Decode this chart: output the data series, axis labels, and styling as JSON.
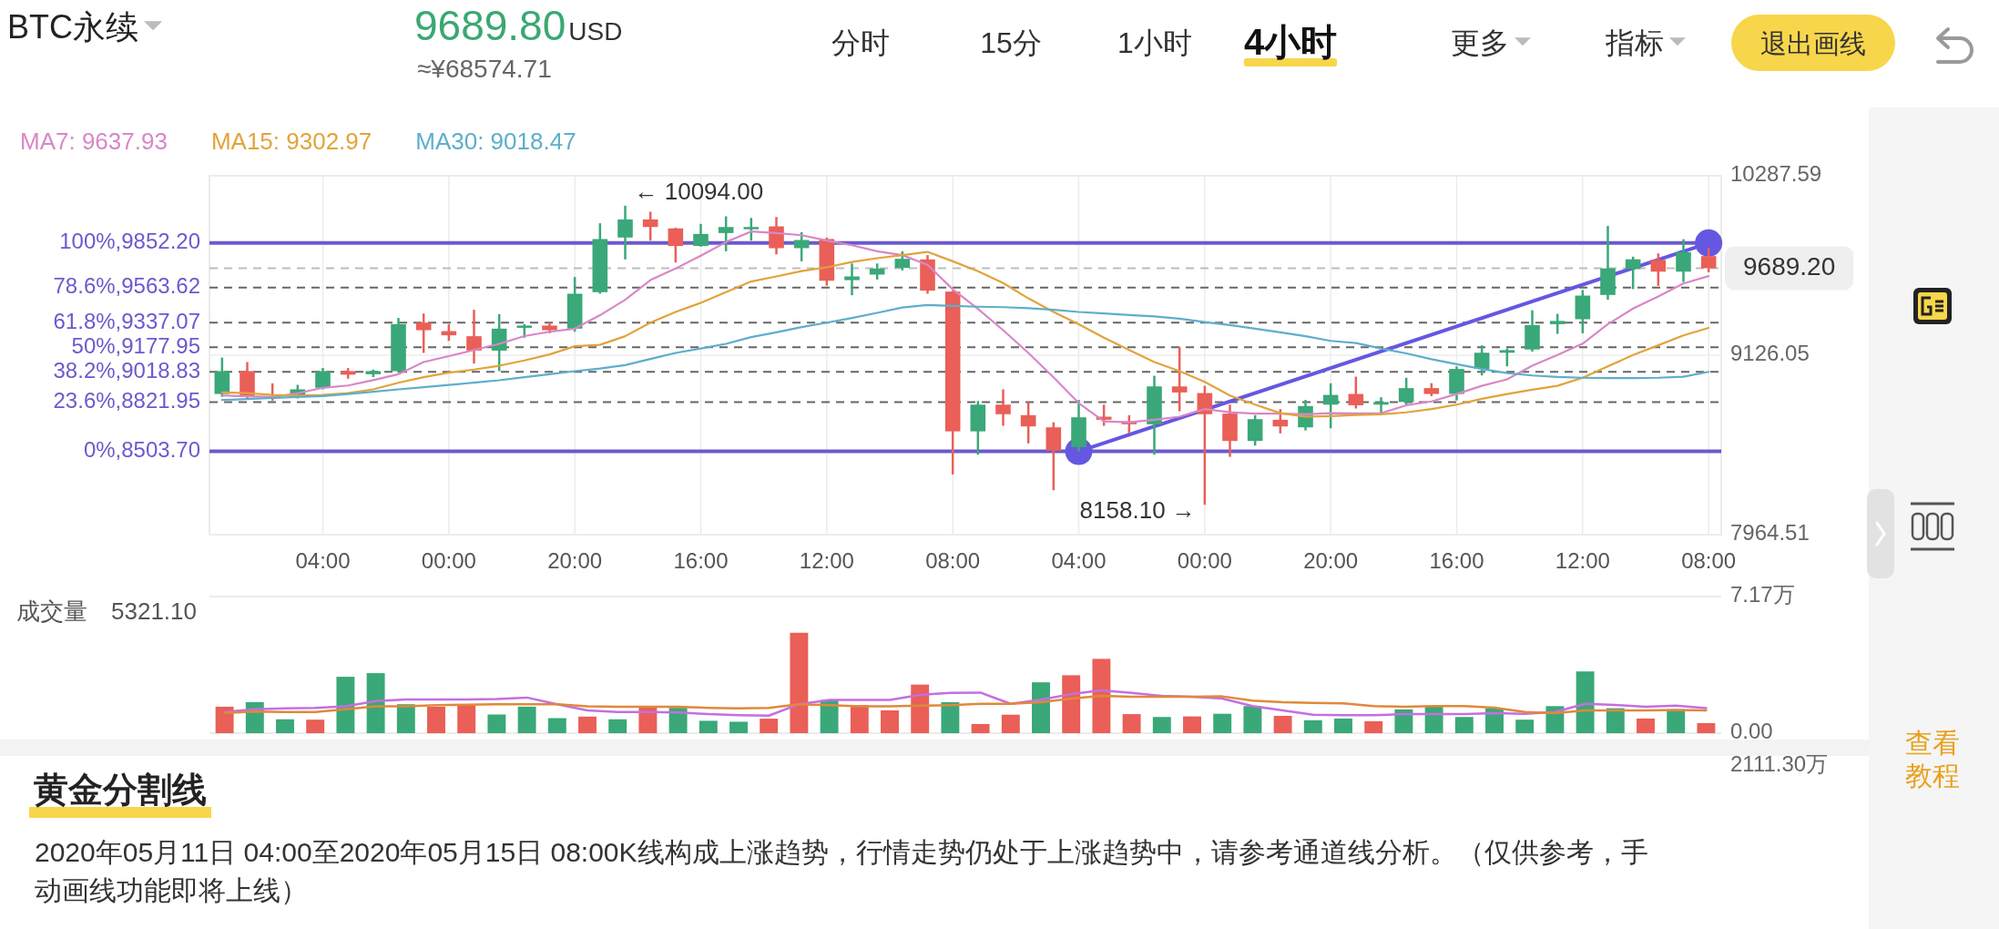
{
  "chart_data": [
    {
      "type": "other",
      "annotations": [
        "BTC永续",
        "9689.80",
        "USD",
        "≈¥68574.71",
        "分时",
        "15分",
        "1小时",
        "4小时",
        "更多",
        "指标",
        "退出画线"
      ]
    },
    {
      "type": "candlestick",
      "x": [
        "2020-05-05T12:00",
        "2020-05-05T16:00",
        "2020-05-05T20:00",
        "2020-05-06T00:00",
        "2020-05-06T04:00",
        "2020-05-06T08:00",
        "2020-05-06T12:00",
        "2020-05-06T16:00",
        "2020-05-06T20:00",
        "2020-05-07T00:00",
        "2020-05-07T04:00",
        "2020-05-07T08:00",
        "2020-05-07T12:00",
        "2020-05-07T16:00",
        "2020-05-07T20:00",
        "2020-05-08T00:00",
        "2020-05-08T04:00",
        "2020-05-08T08:00",
        "2020-05-08T12:00",
        "2020-05-08T16:00",
        "2020-05-08T20:00",
        "2020-05-09T00:00",
        "2020-05-09T04:00",
        "2020-05-09T08:00",
        "2020-05-09T12:00",
        "2020-05-09T16:00",
        "2020-05-09T20:00",
        "2020-05-10T00:00",
        "2020-05-10T04:00",
        "2020-05-10T08:00",
        "2020-05-10T12:00",
        "2020-05-10T16:00",
        "2020-05-10T20:00",
        "2020-05-11T00:00",
        "2020-05-11T04:00",
        "2020-05-11T08:00",
        "2020-05-11T12:00",
        "2020-05-11T16:00",
        "2020-05-11T20:00",
        "2020-05-12T00:00",
        "2020-05-12T04:00",
        "2020-05-12T08:00",
        "2020-05-12T12:00",
        "2020-05-12T16:00",
        "2020-05-12T20:00",
        "2020-05-13T00:00",
        "2020-05-13T04:00",
        "2020-05-13T08:00",
        "2020-05-13T12:00",
        "2020-05-13T16:00",
        "2020-05-13T20:00",
        "2020-05-14T00:00",
        "2020-05-14T04:00",
        "2020-05-14T08:00",
        "2020-05-14T12:00",
        "2020-05-14T16:00",
        "2020-05-14T20:00",
        "2020-05-15T00:00",
        "2020-05-15T04:00",
        "2020-05-15T08:00"
      ],
      "ohlc": [
        [
          8875,
          9111,
          8856,
          9023
        ],
        [
          9023,
          9082,
          8846,
          8856
        ],
        [
          8861,
          8944,
          8830,
          8846
        ],
        [
          8856,
          8934,
          8846,
          8905
        ],
        [
          8915,
          9043,
          8905,
          9023
        ],
        [
          9023,
          9043,
          8974,
          9000
        ],
        [
          9003,
          9033,
          8984,
          9023
        ],
        [
          9023,
          9367,
          9013,
          9327
        ],
        [
          9337,
          9396,
          9141,
          9288
        ],
        [
          9282,
          9327,
          9219,
          9255
        ],
        [
          9249,
          9420,
          9072,
          9156
        ],
        [
          9156,
          9392,
          9023,
          9298
        ],
        [
          9308,
          9327,
          9239,
          9318
        ],
        [
          9318,
          9341,
          9268,
          9288
        ],
        [
          9298,
          9632,
          9278,
          9524
        ],
        [
          9534,
          9980,
          9524,
          9878
        ],
        [
          9888,
          10094,
          9746,
          10005
        ],
        [
          10005,
          10055,
          9868,
          9956
        ],
        [
          9947,
          9951,
          9726,
          9833
        ],
        [
          9833,
          9976,
          9829,
          9911
        ],
        [
          9917,
          10025,
          9799,
          9956
        ],
        [
          9942,
          10015,
          9868,
          9956
        ],
        [
          9960,
          10021,
          9779,
          9819
        ],
        [
          9819,
          9923,
          9734,
          9872
        ],
        [
          9878,
          9888,
          9577,
          9608
        ],
        [
          9612,
          9720,
          9514,
          9636
        ],
        [
          9648,
          9720,
          9616,
          9687
        ],
        [
          9691,
          9799,
          9675,
          9750
        ],
        [
          9746,
          9774,
          9524,
          9544
        ],
        [
          9538,
          9544,
          8354,
          8633
        ],
        [
          8633,
          8830,
          8482,
          8806
        ],
        [
          8806,
          8905,
          8669,
          8744
        ],
        [
          8738,
          8822,
          8555,
          8665
        ],
        [
          8659,
          8692,
          8252,
          8508
        ],
        [
          8531,
          8836,
          8503.7,
          8724
        ],
        [
          8728,
          8806,
          8669,
          8708
        ],
        [
          8698,
          8738,
          8620,
          8679
        ],
        [
          8679,
          8993,
          8482,
          8924
        ],
        [
          8924,
          9180,
          8763,
          8885
        ],
        [
          8881,
          8928,
          8158.1,
          8744
        ],
        [
          8748,
          8806,
          8468,
          8571
        ],
        [
          8571,
          8738,
          8541,
          8712
        ],
        [
          8708,
          8777,
          8620,
          8665
        ],
        [
          8659,
          8836,
          8639,
          8797
        ],
        [
          8806,
          8944,
          8653,
          8869
        ],
        [
          8875,
          8987,
          8781,
          8802
        ],
        [
          8806,
          8854,
          8743,
          8823
        ],
        [
          8823,
          8980,
          8806,
          8913
        ],
        [
          8913,
          8945,
          8861,
          8875
        ],
        [
          8875,
          9054,
          8833,
          9037
        ],
        [
          9037,
          9190,
          8995,
          9142
        ],
        [
          9142,
          9170,
          9054,
          9159
        ],
        [
          9163,
          9417,
          9149,
          9321
        ],
        [
          9327,
          9394,
          9264,
          9348
        ],
        [
          9359,
          9548,
          9268,
          9512
        ],
        [
          9516,
          9963,
          9485,
          9688
        ],
        [
          9684,
          9764,
          9554,
          9747
        ],
        [
          9743,
          9785,
          9575,
          9667
        ],
        [
          9667,
          9877,
          9600,
          9793
        ],
        [
          9768,
          9820,
          9663,
          9689.2
        ]
      ],
      "colors": [
        "#3aa878",
        "#ea5f57",
        "#ea5f57",
        "#3aa878",
        "#3aa878",
        "#ea5f57",
        "#3aa878",
        "#3aa878",
        "#ea5f57",
        "#ea5f57",
        "#ea5f57",
        "#3aa878",
        "#3aa878",
        "#ea5f57",
        "#3aa878",
        "#3aa878",
        "#3aa878",
        "#ea5f57",
        "#ea5f57",
        "#3aa878",
        "#3aa878",
        "#3aa878",
        "#ea5f57",
        "#3aa878",
        "#ea5f57",
        "#3aa878",
        "#3aa878",
        "#3aa878",
        "#ea5f57",
        "#ea5f57",
        "#3aa878",
        "#ea5f57",
        "#ea5f57",
        "#ea5f57",
        "#3aa878",
        "#ea5f57",
        "#ea5f57",
        "#3aa878",
        "#ea5f57",
        "#ea5f57",
        "#ea5f57",
        "#3aa878",
        "#ea5f57",
        "#3aa878",
        "#3aa878",
        "#ea5f57",
        "#3aa878",
        "#3aa878",
        "#ea5f57",
        "#3aa878",
        "#3aa878",
        "#3aa878",
        "#3aa878",
        "#3aa878",
        "#3aa878",
        "#3aa878",
        "#3aa878",
        "#ea5f57",
        "#3aa878",
        "#ea5f57"
      ],
      "series": [
        {
          "name": "MA7: 9637.93",
          "type": "line",
          "color": "#d987c6",
          "values": [
            8865,
            8860,
            8855,
            8880,
            8915,
            8930,
            8965,
            9003,
            9082,
            9120,
            9160,
            9200,
            9250,
            9278,
            9298,
            9385,
            9485,
            9612,
            9687,
            9770,
            9858,
            9927,
            9917,
            9903,
            9868,
            9838,
            9799,
            9774,
            9711,
            9553,
            9426,
            9288,
            9141,
            8983,
            8816,
            8698,
            8692,
            8708,
            8728,
            8777,
            8757,
            8748,
            8748,
            8744,
            8751,
            8750,
            8750,
            8802,
            8827,
            8875,
            8928,
            8970,
            9058,
            9128,
            9201,
            9327,
            9428,
            9506,
            9590,
            9637.93
          ]
        },
        {
          "name": "MA15: 9302.97",
          "type": "line",
          "color": "#e2a33b",
          "values": [
            8885,
            8881,
            8869,
            8865,
            8869,
            8881,
            8905,
            8948,
            8984,
            9013,
            9033,
            9058,
            9092,
            9131,
            9184,
            9193,
            9249,
            9337,
            9406,
            9465,
            9534,
            9603,
            9636,
            9671,
            9695,
            9730,
            9754,
            9774,
            9795,
            9734,
            9670,
            9593,
            9494,
            9406,
            9327,
            9239,
            9160,
            9082,
            9023,
            8954,
            8865,
            8806,
            8751,
            8728,
            8732,
            8739,
            8743,
            8756,
            8777,
            8806,
            8844,
            8875,
            8903,
            8928,
            8980,
            9054,
            9127,
            9190,
            9254,
            9302.97
          ]
        },
        {
          "name": "MA30: 9018.47",
          "type": "line",
          "color": "#5eaecb",
          "values": [
            8836,
            8842,
            8850,
            8856,
            8862,
            8875,
            8889,
            8905,
            8919,
            8934,
            8948,
            8964,
            8984,
            9003,
            9023,
            9040,
            9062,
            9102,
            9141,
            9170,
            9200,
            9243,
            9274,
            9308,
            9337,
            9367,
            9400,
            9435,
            9451,
            9445,
            9440,
            9437,
            9430,
            9420,
            9406,
            9396,
            9386,
            9377,
            9363,
            9341,
            9321,
            9298,
            9274,
            9249,
            9219,
            9205,
            9170,
            9138,
            9100,
            9068,
            9037,
            9010,
            8995,
            8985,
            8980,
            8978,
            8978,
            8980,
            8987,
            9018.47
          ]
        },
        {
          "type": "line",
          "color": "#6657e0",
          "marker": "circle",
          "x": [
            "2020-05-11T04:00",
            "2020-05-15T08:00"
          ],
          "values": [
            8503.7,
            9852.2
          ]
        }
      ],
      "xlim": [
        "2020-05-05T10:00",
        "2020-05-15T10:00"
      ],
      "xticks": [
        {
          "value": "2020-05-06T04:00",
          "label": "04:00"
        },
        {
          "value": "2020-05-07T00:00",
          "label": "00:00"
        },
        {
          "value": "2020-05-07T20:00",
          "label": "20:00"
        },
        {
          "value": "2020-05-08T16:00",
          "label": "16:00"
        },
        {
          "value": "2020-05-09T12:00",
          "label": "12:00"
        },
        {
          "value": "2020-05-10T08:00",
          "label": "08:00"
        },
        {
          "value": "2020-05-11T04:00",
          "label": "04:00"
        },
        {
          "value": "2020-05-12T00:00",
          "label": "00:00"
        },
        {
          "value": "2020-05-12T20:00",
          "label": "20:00"
        },
        {
          "value": "2020-05-13T16:00",
          "label": "16:00"
        },
        {
          "value": "2020-05-14T12:00",
          "label": "12:00"
        },
        {
          "value": "2020-05-15T08:00",
          "label": "08:00"
        }
      ],
      "ylim": [
        7964.51,
        10287.59
      ],
      "yticks": [
        10287.59,
        9126.05,
        7964.51
      ],
      "grid": true,
      "legend": "top left",
      "ref_lines": [
        {
          "axis": "y",
          "value": 9852.2,
          "label": "100%,9852.20",
          "color": "#6a5acd",
          "line_style": "solid"
        },
        {
          "axis": "y",
          "value": 9689.2,
          "label": "9689.20",
          "color": "#bdbdbd",
          "line_style": "dashed"
        },
        {
          "axis": "y",
          "value": 9563.62,
          "label": "78.6%,9563.62",
          "color": "#666666",
          "line_style": "dashed"
        },
        {
          "axis": "y",
          "value": 9337.07,
          "label": "61.8%,9337.07",
          "color": "#666666",
          "line_style": "dashed"
        },
        {
          "axis": "y",
          "value": 9177.95,
          "label": "50%,9177.95",
          "color": "#666666",
          "line_style": "dashed"
        },
        {
          "axis": "y",
          "value": 9018.83,
          "label": "38.2%,9018.83",
          "color": "#666666",
          "line_style": "dashed"
        },
        {
          "axis": "y",
          "value": 8821.95,
          "label": "23.6%,8821.95",
          "color": "#666666",
          "line_style": "dashed"
        },
        {
          "axis": "y",
          "value": 8503.7,
          "label": "0%,8503.70",
          "color": "#6a5acd",
          "line_style": "solid"
        }
      ],
      "annotations": [
        {
          "text": "← 10094.00",
          "x": "2020-05-08T04:00",
          "y": 10094
        },
        {
          "text": "8158.10 →",
          "x": "2020-05-12T00:00",
          "y": 8158.1
        }
      ]
    },
    {
      "type": "bar",
      "title": "成交量",
      "categories": [
        null,
        null,
        null,
        null,
        null,
        null,
        null,
        null,
        null,
        null,
        null,
        null,
        null,
        null,
        null,
        null,
        null,
        null,
        null,
        null,
        null,
        null,
        null,
        null,
        null,
        null,
        null,
        null,
        null,
        null,
        null,
        null,
        null,
        null,
        null,
        null,
        null,
        null,
        null,
        null,
        null,
        null,
        null,
        null,
        null,
        null,
        null,
        null,
        null,
        null
      ],
      "series": [
        {
          "type": "bar",
          "values": [
            1.39,
            1.63,
            0.73,
            0.71,
            2.96,
            3.15,
            1.52,
            1.39,
            1.47,
            0.98,
            1.39,
            0.79,
            0.87,
            0.73,
            1.39,
            1.33,
            0.65,
            0.6,
            0.76,
            5.27,
            1.74,
            1.47,
            1.2,
            2.55,
            1.63,
            0.48,
            0.97,
            2.67,
            3.04,
            3.9,
            1.0,
            0.85,
            0.88,
            1.02,
            1.42,
            0.91,
            0.68,
            0.77,
            0.63,
            1.25,
            1.42,
            0.85,
            1.31,
            0.71,
            1.42,
            3.24,
            1.31,
            0.77,
            1.25,
            0.53
          ],
          "colors": [
            "#ea5f57",
            "#3aa878",
            "#3aa878",
            "#ea5f57",
            "#3aa878",
            "#3aa878",
            "#3aa878",
            "#ea5f57",
            "#ea5f57",
            "#3aa878",
            "#3aa878",
            "#3aa878",
            "#ea5f57",
            "#3aa878",
            "#ea5f57",
            "#3aa878",
            "#3aa878",
            "#3aa878",
            "#ea5f57",
            "#ea5f57",
            "#3aa878",
            "#ea5f57",
            "#ea5f57",
            "#ea5f57",
            "#3aa878",
            "#ea5f57",
            "#ea5f57",
            "#3aa878",
            "#ea5f57",
            "#ea5f57",
            "#ea5f57",
            "#3aa878",
            "#ea5f57",
            "#3aa878",
            "#3aa878",
            "#ea5f57",
            "#3aa878",
            "#3aa878",
            "#ea5f57",
            "#3aa878",
            "#3aa878",
            "#3aa878",
            "#3aa878",
            "#3aa878",
            "#3aa878",
            "#3aa878",
            "#3aa878",
            "#ea5f57",
            "#3aa878",
            "#ea5f57"
          ]
        },
        {
          "type": "line",
          "color": "#c46fe0",
          "values": [
            1.11,
            1.25,
            1.3,
            1.33,
            1.41,
            1.68,
            1.77,
            1.77,
            1.77,
            1.79,
            1.87,
            1.52,
            1.2,
            1.11,
            1.11,
            1.09,
            1.0,
            0.95,
            0.92,
            1.52,
            1.74,
            1.74,
            1.74,
            2.01,
            2.12,
            2.13,
            1.54,
            1.76,
            2.05,
            2.25,
            2.11,
            1.96,
            1.91,
            1.82,
            1.42,
            1.19,
            0.97,
            0.94,
            0.94,
            1.0,
            1.0,
            1.0,
            1.05,
            1.02,
            1.11,
            1.54,
            1.48,
            1.39,
            1.45,
            1.31
          ]
        },
        {
          "type": "line",
          "color": "#e0893a",
          "values": [
            1.06,
            1.14,
            1.11,
            1.11,
            1.25,
            1.41,
            1.41,
            1.47,
            1.49,
            1.52,
            1.52,
            1.52,
            1.41,
            1.39,
            1.39,
            1.39,
            1.33,
            1.3,
            1.33,
            1.52,
            1.47,
            1.41,
            1.41,
            1.44,
            1.47,
            1.54,
            1.54,
            1.62,
            1.82,
            1.96,
            1.91,
            1.91,
            1.91,
            1.93,
            1.71,
            1.62,
            1.59,
            1.56,
            1.42,
            1.39,
            1.42,
            1.42,
            1.34,
            1.11,
            1.05,
            1.19,
            1.19,
            1.19,
            1.22,
            1.19
          ]
        }
      ],
      "ylim": [
        0,
        7.17
      ],
      "yticks": [
        {
          "value": 7.17,
          "label": "7.17万"
        },
        {
          "value": 0,
          "label": "0.00"
        }
      ],
      "tick_labels": "y",
      "annotations": [
        "5321.10",
        "2111.30万"
      ]
    },
    {
      "type": "other",
      "title": "黄金分割线",
      "annotations": [
        "2020年05月11日 04:00至2020年05月15日 08:00K线构成上涨趋势，行情走势仍处于上涨趋势中，请参考通道线分析。（仅供参考，手动画线功能即将上线）",
        "查看教程"
      ]
    }
  ]
}
